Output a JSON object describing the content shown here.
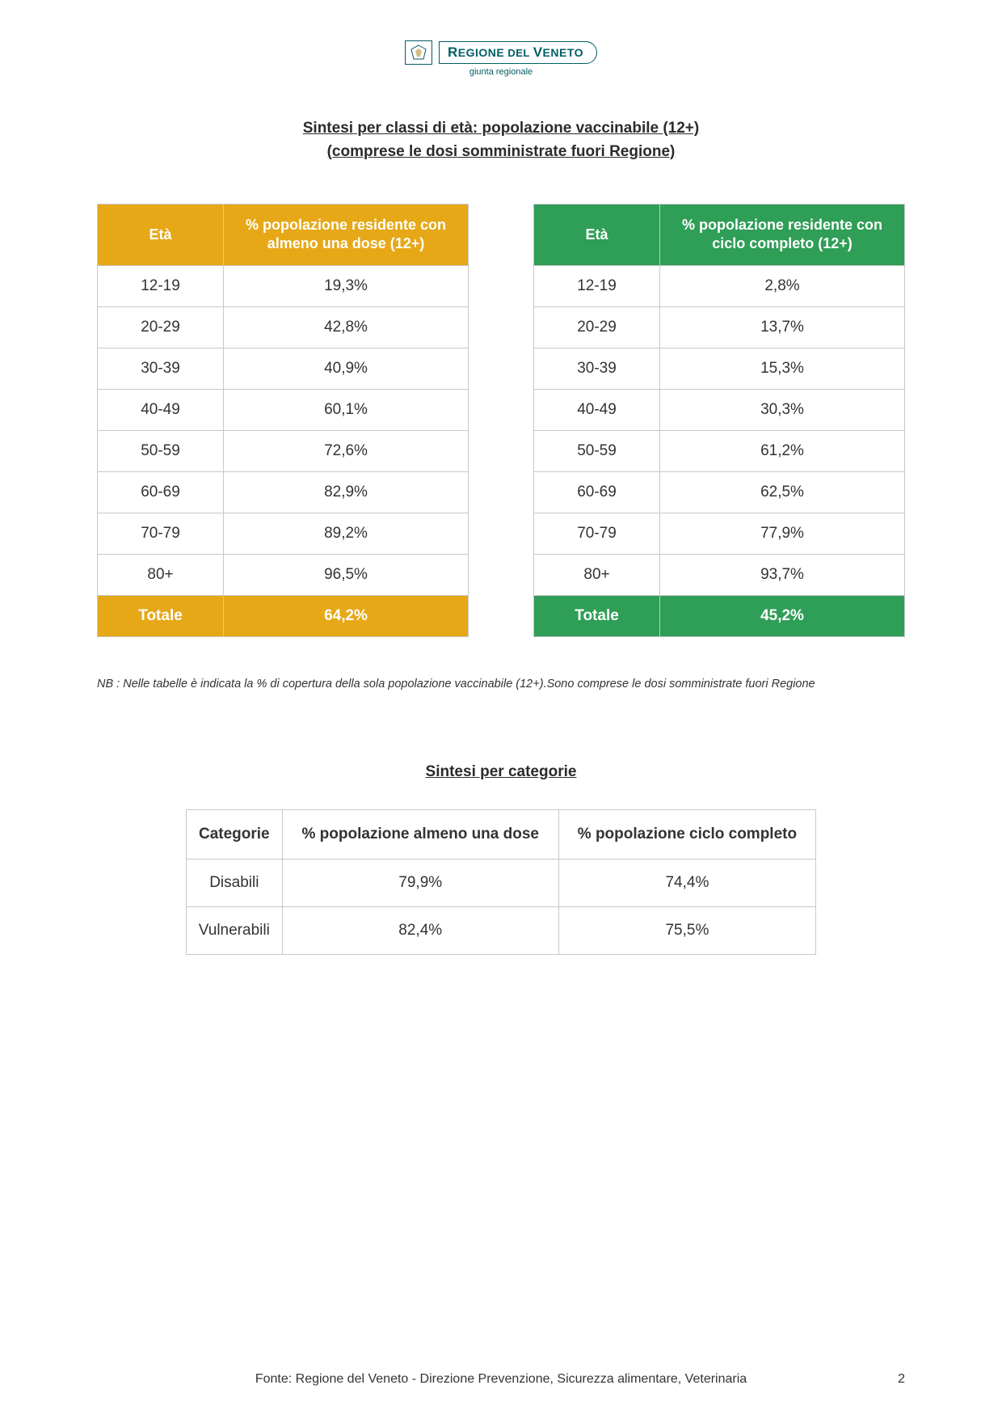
{
  "header": {
    "org_name_prefix": "R",
    "org_name_1": "EGIONE",
    "org_name_small": " DEL ",
    "org_name_2": "V",
    "org_name_3": "ENETO",
    "subtitle": "giunta regionale"
  },
  "section1": {
    "title_line1": "Sintesi per classi di età: popolazione vaccinabile (12+)",
    "title_line2": "(comprese le dosi somministrate fuori Regione)"
  },
  "table_left": {
    "header_bg": "#e6a817",
    "footer_bg": "#e6a817",
    "col1": "Età",
    "col2": "% popolazione residente con almeno una dose (12+)",
    "rows": [
      {
        "age": "12-19",
        "val": "19,3%"
      },
      {
        "age": "20-29",
        "val": "42,8%"
      },
      {
        "age": "30-39",
        "val": "40,9%"
      },
      {
        "age": "40-49",
        "val": "60,1%"
      },
      {
        "age": "50-59",
        "val": "72,6%"
      },
      {
        "age": "60-69",
        "val": "82,9%"
      },
      {
        "age": "70-79",
        "val": "89,2%"
      },
      {
        "age": "80+",
        "val": "96,5%"
      }
    ],
    "total_label": "Totale",
    "total_val": "64,2%"
  },
  "table_right": {
    "header_bg": "#2f9e56",
    "footer_bg": "#2f9e56",
    "col1": "Età",
    "col2": "% popolazione residente con ciclo completo (12+)",
    "rows": [
      {
        "age": "12-19",
        "val": "2,8%"
      },
      {
        "age": "20-29",
        "val": "13,7%"
      },
      {
        "age": "30-39",
        "val": "15,3%"
      },
      {
        "age": "40-49",
        "val": "30,3%"
      },
      {
        "age": "50-59",
        "val": "61,2%"
      },
      {
        "age": "60-69",
        "val": "62,5%"
      },
      {
        "age": "70-79",
        "val": "77,9%"
      },
      {
        "age": "80+",
        "val": "93,7%"
      }
    ],
    "total_label": "Totale",
    "total_val": "45,2%"
  },
  "note": "NB : Nelle tabelle è indicata la % di copertura della sola popolazione vaccinabile (12+).Sono comprese le dosi somministrate fuori Regione",
  "section2": {
    "title": "Sintesi per categorie"
  },
  "cat_table": {
    "header_bg": "#b6d3e8",
    "col1": "Categorie",
    "col2": "% popolazione almeno una dose",
    "col3": "% popolazione ciclo completo",
    "rows": [
      {
        "cat": "Disabili",
        "d1": "79,9%",
        "d2": "74,4%"
      },
      {
        "cat": "Vulnerabili",
        "d1": "82,4%",
        "d2": "75,5%"
      }
    ]
  },
  "footer": {
    "source": "Fonte: Regione del Veneto - Direzione Prevenzione, Sicurezza alimentare, Veterinaria",
    "page": "2"
  }
}
